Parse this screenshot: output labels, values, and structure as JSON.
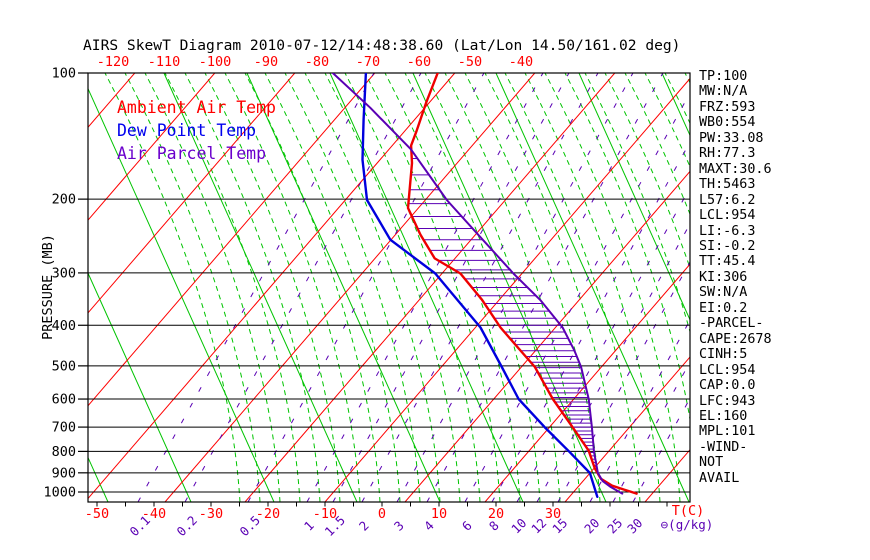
{
  "title": "AIRS SkewT Diagram 2010-07-12/14:48:38.60 (Lat/Lon 14.50/161.02 deg)",
  "legend": {
    "items": [
      {
        "label": "Ambient Air Temp",
        "color": "#ff0000"
      },
      {
        "label": "Dew Point Temp",
        "color": "#0000ee"
      },
      {
        "label": "Air Parcel Temp",
        "color": "#6a00cc"
      }
    ]
  },
  "y_axis": {
    "label": "PRESSURE (MB)",
    "ticks": [
      100,
      200,
      300,
      400,
      500,
      600,
      700,
      800,
      900,
      1000
    ]
  },
  "x_axis_top": {
    "color": "#ff0000",
    "ticks": [
      -120,
      -110,
      -100,
      -90,
      -80,
      -70,
      -60,
      -50,
      -40
    ]
  },
  "x_axis_bottom": {
    "color": "#ff0000",
    "ticks": [
      -50,
      -40,
      -30,
      -20,
      -10,
      0,
      10,
      20,
      30
    ],
    "unit": "T(C)"
  },
  "mixing_axis": {
    "color": "#5a00b4",
    "ticks": [
      0.1,
      0.2,
      0.5,
      1,
      1.5,
      2,
      3,
      4,
      6,
      8,
      10,
      12,
      15,
      20,
      25,
      30
    ],
    "unit": "⊖(g/kg)"
  },
  "stats_panel": {
    "items": [
      "TP:100",
      "MW:N/A",
      "FRZ:593",
      "WB0:554",
      "PW:33.08",
      "RH:77.3",
      "MAXT:30.6",
      "TH:5463",
      "L57:6.2",
      "LCL:954",
      "LI:-6.3",
      "SI:-0.2",
      "TT:45.4",
      "KI:306",
      "SW:N/A",
      "EI:0.2",
      "-PARCEL-",
      "CAPE:2678",
      "CINH:5",
      "LCL:954",
      "CAP:0.0",
      "LFC:943",
      "EL:160",
      "MPL:101",
      "-WIND-",
      "NOT",
      "AVAIL"
    ]
  },
  "chart_data": {
    "type": "line",
    "subtype": "skewt-log-p-sounding",
    "title": "AIRS SkewT Diagram 2010-07-12/14:48:38.60 (Lat/Lon 14.50/161.02 deg)",
    "xlabel": "T(C)",
    "ylabel": "PRESSURE (MB)",
    "pressure_range_mb": [
      100,
      1052
    ],
    "temp_ticks_top_c": [
      -120,
      -110,
      -100,
      -90,
      -80,
      -70,
      -60,
      -50,
      -40
    ],
    "temp_ticks_bottom_c": [
      -50,
      -40,
      -30,
      -20,
      -10,
      0,
      10,
      20,
      30
    ],
    "mixing_ratio_ticks_gkg": [
      0.1,
      0.2,
      0.5,
      1,
      1.5,
      2,
      3,
      4,
      6,
      8,
      10,
      12,
      15,
      20,
      25,
      30
    ],
    "pressure_gridlines_mb": [
      100,
      200,
      300,
      400,
      500,
      600,
      700,
      800,
      900,
      1000
    ],
    "grid": {
      "isotherm_color": "#ff0000",
      "dry_adiabat_color": "#00c400",
      "moist_adiabat_color": "#00c400",
      "mixing_ratio_color": "#5a00b4",
      "pressure_line_color": "#000000"
    },
    "series": [
      {
        "name": "Ambient Air Temp",
        "color": "#ee0000",
        "points_p_t": [
          [
            100,
            -55.1
          ],
          [
            118,
            -52.6
          ],
          [
            137,
            -50.1
          ],
          [
            149,
            -48.8
          ],
          [
            164,
            -46.0
          ],
          [
            210,
            -39.9
          ],
          [
            243,
            -33.7
          ],
          [
            277,
            -27.6
          ],
          [
            301,
            -20.8
          ],
          [
            348,
            -13.0
          ],
          [
            405,
            -5.6
          ],
          [
            458,
            1.2
          ],
          [
            503,
            6.4
          ],
          [
            600,
            14.4
          ],
          [
            700,
            22.1
          ],
          [
            797,
            28.5
          ],
          [
            877,
            32.2
          ],
          [
            930,
            34.9
          ],
          [
            966,
            37.9
          ],
          [
            987,
            40.6
          ],
          [
            1009,
            43.4
          ]
        ]
      },
      {
        "name": "Dew Point Temp",
        "color": "#0000dd",
        "points_p_t": [
          [
            100,
            -67.7
          ],
          [
            129,
            -61.1
          ],
          [
            161,
            -55.2
          ],
          [
            201,
            -48.3
          ],
          [
            250,
            -38.2
          ],
          [
            301,
            -25.2
          ],
          [
            405,
            -9.1
          ],
          [
            503,
            0.6
          ],
          [
            600,
            8.4
          ],
          [
            700,
            17.2
          ],
          [
            802,
            25.3
          ],
          [
            901,
            32.1
          ],
          [
            1027,
            37.0
          ]
        ]
      },
      {
        "name": "Air Parcel Temp",
        "color": "#5a00b4",
        "points_p_t": [
          [
            100,
            -73.5
          ],
          [
            121,
            -61.7
          ],
          [
            152,
            -48.3
          ],
          [
            201,
            -34.3
          ],
          [
            246,
            -22.9
          ],
          [
            301,
            -11.5
          ],
          [
            348,
            -2.8
          ],
          [
            405,
            5.3
          ],
          [
            458,
            10.7
          ],
          [
            503,
            14.5
          ],
          [
            600,
            20.7
          ],
          [
            700,
            25.5
          ],
          [
            802,
            29.6
          ],
          [
            901,
            33.5
          ],
          [
            941,
            35.5
          ],
          [
            971,
            37.7
          ],
          [
            1009,
            40.9
          ]
        ]
      }
    ],
    "cape_hatch": {
      "between": [
        "Ambient Air Temp",
        "Air Parcel Temp"
      ],
      "p_top_mb": 160,
      "p_bottom_mb": 900,
      "color": "#5a00b4"
    },
    "indices": {
      "TP": "100",
      "MW": "N/A",
      "FRZ": "593",
      "WB0": "554",
      "PW": "33.08",
      "RH": "77.3",
      "MAXT": "30.6",
      "TH": "5463",
      "L57": "6.2",
      "LCL": "954",
      "LI": "-6.3",
      "SI": "-0.2",
      "TT": "45.4",
      "KI": "306",
      "SW": "N/A",
      "EI": "0.2",
      "CAPE": "2678",
      "CINH": "5",
      "CAP": "0.0",
      "LFC": "943",
      "EL": "160",
      "MPL": "101",
      "WIND": "NOT AVAIL"
    },
    "legend_position": "upper-left-inside"
  }
}
